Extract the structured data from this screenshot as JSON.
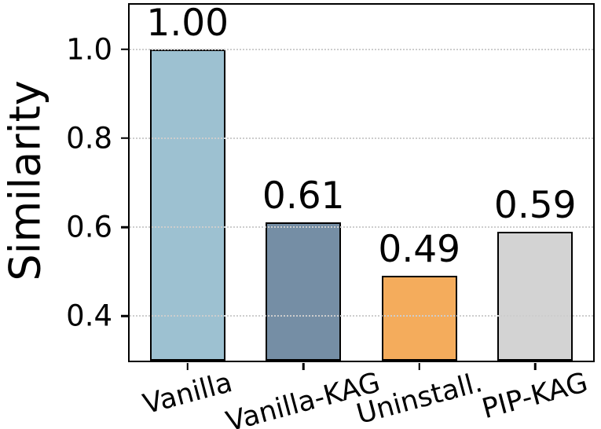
{
  "chart_data": {
    "type": "bar",
    "title": "",
    "xlabel": "",
    "ylabel": "Similarity",
    "categories": [
      "Vanilla",
      "Vanilla-KAG",
      "Uninstall.",
      "PIP-KAG"
    ],
    "values": [
      1.0,
      0.61,
      0.49,
      0.59
    ],
    "value_labels": [
      "1.00",
      "0.61",
      "0.49",
      "0.59"
    ],
    "bar_colors": [
      "#9dc1d1",
      "#758ea5",
      "#f4ac5c",
      "#d3d3d3"
    ],
    "bar_edge_color": "#000000",
    "ylim": [
      0.3,
      1.1
    ],
    "ytick_values": [
      1.0,
      0.8,
      0.6,
      0.4
    ],
    "ytick_labels": [
      "1.0",
      "0.8",
      "0.6",
      "0.4"
    ],
    "xtick_rotation_deg": 15,
    "grid": "horizontal dotted, drawn over bars",
    "grid_color": "#cdcdcd",
    "legend": "none"
  }
}
